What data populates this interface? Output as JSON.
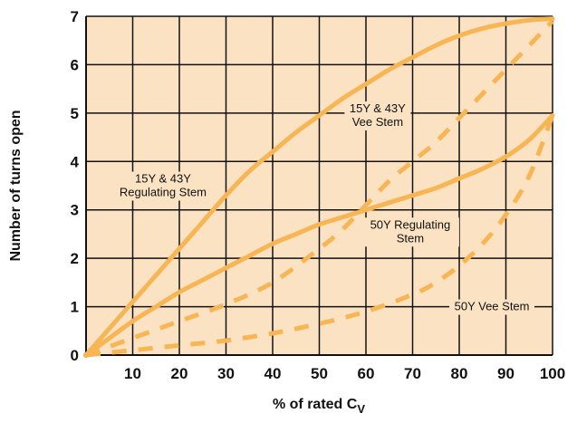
{
  "colors": {
    "plot_bg": "#fbe2c3",
    "curve": "#f7b553",
    "grid": "#111111"
  },
  "chart_data": {
    "type": "line",
    "xlabel": "% of rated C",
    "xlabel_sub": "V",
    "ylabel": "Number of turns open",
    "xlim": [
      0,
      100
    ],
    "ylim": [
      0,
      7
    ],
    "grid": true,
    "x_ticks": [
      10,
      20,
      30,
      40,
      50,
      60,
      70,
      80,
      90,
      100
    ],
    "y_ticks": [
      0,
      1,
      2,
      3,
      4,
      5,
      6,
      7
    ],
    "series": [
      {
        "style": "solid",
        "x": [
          0,
          5,
          10,
          15,
          20,
          25,
          30,
          35,
          40,
          45,
          50,
          55,
          60,
          65,
          70,
          75,
          80,
          85,
          90,
          95,
          100
        ],
        "y": [
          0,
          0.55,
          1.1,
          1.65,
          2.2,
          2.75,
          3.3,
          3.8,
          4.2,
          4.6,
          4.95,
          5.3,
          5.6,
          5.9,
          6.15,
          6.4,
          6.6,
          6.75,
          6.85,
          6.92,
          6.95
        ]
      },
      {
        "style": "dashed",
        "x": [
          0,
          10,
          20,
          30,
          40,
          50,
          55,
          60,
          65,
          70,
          75,
          80,
          85,
          90,
          95,
          100
        ],
        "y": [
          0,
          0.35,
          0.7,
          1.05,
          1.5,
          2.2,
          2.6,
          3.1,
          3.6,
          4.0,
          4.4,
          4.9,
          5.4,
          5.9,
          6.4,
          6.9
        ]
      },
      {
        "style": "solid",
        "x": [
          0,
          5,
          10,
          15,
          20,
          25,
          30,
          35,
          40,
          45,
          50,
          55,
          60,
          65,
          70,
          75,
          80,
          85,
          90,
          95,
          100
        ],
        "y": [
          0,
          0.35,
          0.7,
          1.0,
          1.3,
          1.55,
          1.8,
          2.05,
          2.3,
          2.5,
          2.7,
          2.85,
          3.0,
          3.15,
          3.3,
          3.45,
          3.65,
          3.85,
          4.1,
          4.45,
          4.95
        ]
      },
      {
        "style": "dashed",
        "x": [
          0,
          10,
          20,
          30,
          40,
          50,
          60,
          70,
          75,
          80,
          85,
          90,
          95,
          100
        ],
        "y": [
          0,
          0.1,
          0.2,
          0.3,
          0.45,
          0.65,
          0.9,
          1.25,
          1.5,
          1.85,
          2.3,
          2.9,
          3.7,
          4.95
        ]
      }
    ],
    "annotations": [
      {
        "lines": [
          "15Y & 43Y",
          "Regulating Stem"
        ],
        "x": 16.5,
        "y": 3.5
      },
      {
        "lines": [
          "15Y & 43Y",
          "Vee Stem"
        ],
        "x": 62.5,
        "y": 4.95
      },
      {
        "lines": [
          "50Y Regulating",
          "Stem"
        ],
        "x": 69.5,
        "y": 2.55
      },
      {
        "lines": [
          "50Y Vee Stem"
        ],
        "x": 87,
        "y": 1.0
      }
    ]
  }
}
